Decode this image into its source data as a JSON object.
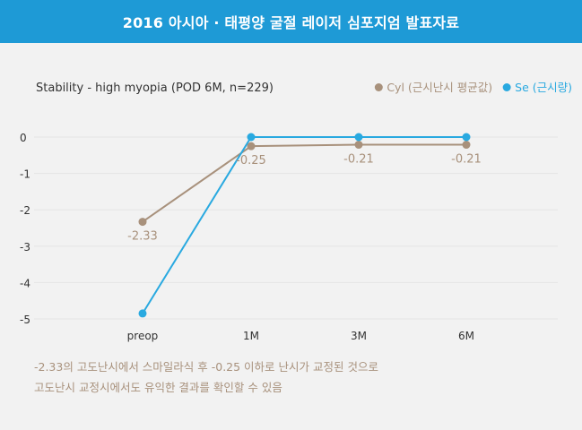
{
  "header": {
    "title": "2016 아시아 · 태평양 굴절 레이저 심포지엄 발표자료"
  },
  "colors": {
    "header_bg": "#1e9ad6",
    "cyl": "#a8917c",
    "se": "#29a9e0"
  },
  "chart_data": {
    "type": "line",
    "title": "Stability - high myopia (POD 6M, n=229)",
    "categories": [
      "preop",
      "1M",
      "3M",
      "6M"
    ],
    "y_ticks": [
      "0",
      "-1",
      "-2",
      "-3",
      "-4",
      "-5"
    ],
    "ylim": [
      -5,
      0
    ],
    "grid": true,
    "legend": "top-right",
    "series": [
      {
        "name": "Cyl (근시난시 평균값)",
        "values": [
          -2.33,
          -0.25,
          -0.21,
          -0.21
        ],
        "labels": [
          "-2.33",
          "-0.25",
          "-0.21",
          "-0.21"
        ],
        "color": "#a8917c"
      },
      {
        "name": "Se (근시량)",
        "values": [
          -4.85,
          0,
          0,
          0
        ],
        "color": "#29a9e0"
      }
    ]
  },
  "footnote": {
    "line1": "-2.33의 고도난시에서 스마일라식 후 -0.25 이하로 난시가 교정된 것으로",
    "line2": "고도난시 교정시에서도 유익한 결과를 확인할 수 있음"
  }
}
